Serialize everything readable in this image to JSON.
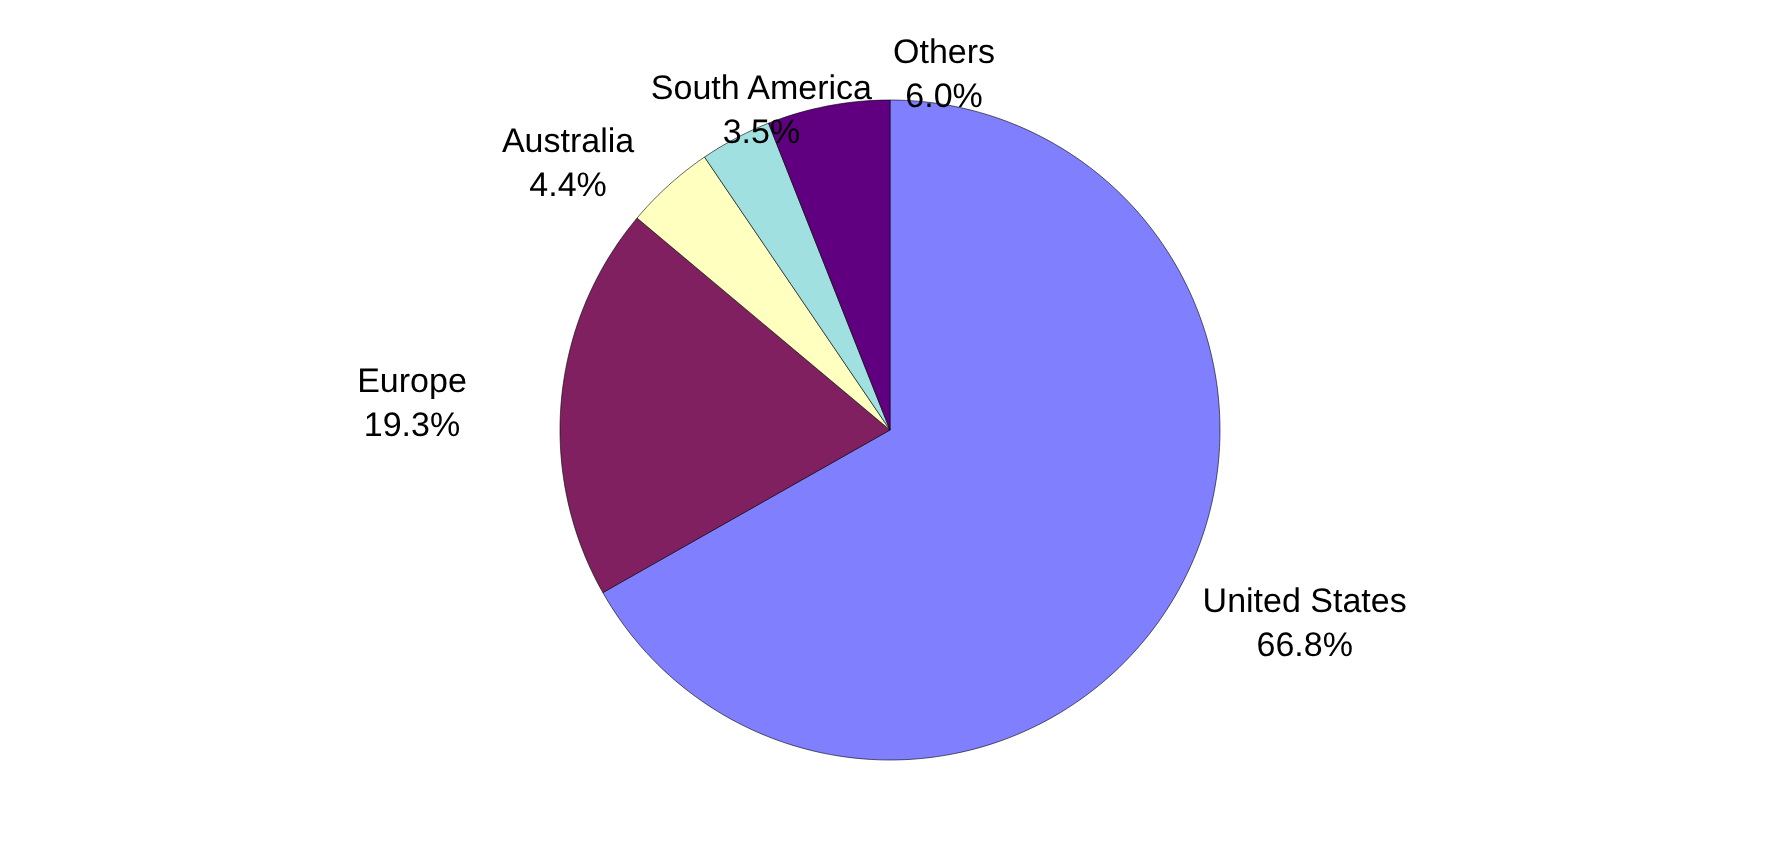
{
  "chart_data": {
    "type": "pie",
    "categories": [
      "United States",
      "Europe",
      "Australia",
      "South America",
      "Others"
    ],
    "values": [
      66.8,
      19.3,
      4.4,
      3.5,
      6.0
    ],
    "colors": [
      "#8080ff",
      "#802060",
      "#ffffc0",
      "#a0e0e0",
      "#600080"
    ],
    "value_labels": [
      "66.8%",
      "19.3%",
      "4.4%",
      "3.5%",
      "6.0%"
    ]
  }
}
